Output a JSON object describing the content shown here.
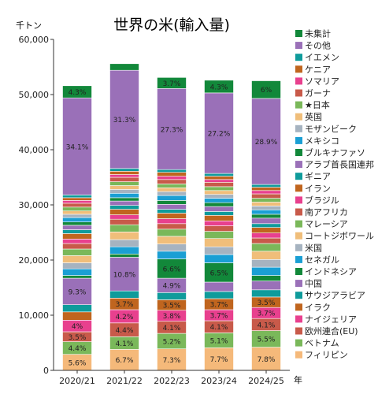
{
  "chart_data": {
    "type": "bar",
    "stacked": true,
    "title": "世界の米(輸入量)",
    "ylabel": "千トン",
    "xlabel": "年",
    "ylim": [
      0,
      60000
    ],
    "yticks": [
      0,
      10000,
      20000,
      30000,
      40000,
      50000,
      60000
    ],
    "ytick_labels": [
      "0",
      "10,000",
      "20,000",
      "30,000",
      "40,000",
      "50,000",
      "60,000"
    ],
    "categories": [
      "2020/21",
      "2021/22",
      "2022/23",
      "2023/24",
      "2024/25"
    ],
    "grid": false,
    "legend_position": "right",
    "series": [
      {
        "name": "フィリピン",
        "color": "#f5b97a",
        "values": [
          2900,
          3800,
          3900,
          4100,
          4200
        ],
        "labels": [
          "5.6%",
          "6.7%",
          "7.3%",
          "7.7%",
          "7.8%"
        ]
      },
      {
        "name": "ベトナム",
        "color": "#7ab85a",
        "values": [
          2300,
          2300,
          2800,
          2700,
          3000
        ],
        "labels": [
          "4.4%",
          "4.1%",
          "5.2%",
          "5.1%",
          "5.5%"
        ]
      },
      {
        "name": "欧州連合(EU)",
        "color": "#c85a4a",
        "values": [
          1800,
          2500,
          2200,
          2200,
          2200
        ],
        "labels": [
          "3.5%",
          "4.4%",
          "4.1%",
          "4.1%",
          "4.1%"
        ]
      },
      {
        "name": "ナイジェリア",
        "color": "#e8408e",
        "values": [
          2100,
          2400,
          2000,
          2000,
          2000
        ],
        "labels": [
          "4%",
          "4.2%",
          "3.8%",
          "3.7%",
          "3.7%"
        ]
      },
      {
        "name": "イラク",
        "color": "#c0651e",
        "values": [
          1500,
          2100,
          1900,
          2000,
          1900
        ],
        "labels": [
          "",
          "3.7%",
          "3.5%",
          "3.7%",
          "3.5%"
        ]
      },
      {
        "name": "サウジアラビア",
        "color": "#0f9b9b",
        "values": [
          1300,
          1300,
          1300,
          1300,
          1300
        ],
        "labels": [
          "",
          "",
          "",
          "",
          ""
        ]
      },
      {
        "name": "中国",
        "color": "#9a70b8",
        "values": [
          4800,
          6100,
          2600,
          1700,
          1600
        ],
        "labels": [
          "9.3%",
          "10.8%",
          "4.9%",
          "",
          ""
        ]
      },
      {
        "name": "インドネシア",
        "color": "#12883a",
        "values": [
          500,
          600,
          3500,
          3500,
          1000
        ],
        "labels": [
          "",
          "",
          "6.6%",
          "6.5%",
          ""
        ]
      },
      {
        "name": "セネガル",
        "color": "#1a9fd4",
        "values": [
          1200,
          1300,
          1400,
          1500,
          1500
        ],
        "labels": [
          "",
          "",
          "",
          "",
          ""
        ]
      },
      {
        "name": "米国",
        "color": "#a6b3c0",
        "values": [
          1100,
          1300,
          1300,
          1400,
          1400
        ],
        "labels": [
          "",
          "",
          "",
          "",
          ""
        ]
      },
      {
        "name": "コートジボワール",
        "color": "#f0be7a",
        "values": [
          1300,
          1400,
          1400,
          1500,
          1500
        ],
        "labels": [
          "",
          "",
          "",
          "",
          ""
        ]
      },
      {
        "name": "マレーシア",
        "color": "#7ab85a",
        "values": [
          1200,
          1300,
          1300,
          1300,
          1400
        ],
        "labels": [
          "",
          "",
          "",
          "",
          ""
        ]
      },
      {
        "name": "南アフリカ",
        "color": "#c85a4a",
        "values": [
          1000,
          1000,
          1000,
          1000,
          1000
        ],
        "labels": [
          "",
          "",
          "",
          "",
          ""
        ]
      },
      {
        "name": "ブラジル",
        "color": "#e8408e",
        "values": [
          800,
          800,
          900,
          900,
          900
        ],
        "labels": [
          "",
          "",
          "",
          "",
          ""
        ]
      },
      {
        "name": "イラン",
        "color": "#c0651e",
        "values": [
          1000,
          1000,
          1000,
          1000,
          1000
        ],
        "labels": [
          "",
          "",
          "",
          "",
          ""
        ]
      },
      {
        "name": "ギニア",
        "color": "#0f9b9b",
        "values": [
          700,
          700,
          700,
          700,
          700
        ],
        "labels": [
          "",
          "",
          "",
          "",
          ""
        ]
      },
      {
        "name": "アラブ首長国連邦",
        "color": "#9a70b8",
        "values": [
          800,
          800,
          900,
          900,
          1000
        ],
        "labels": [
          "",
          "",
          "",
          "",
          ""
        ]
      },
      {
        "name": "ブルキナファソ",
        "color": "#12883a",
        "values": [
          600,
          600,
          700,
          700,
          700
        ],
        "labels": [
          "",
          "",
          "",
          "",
          ""
        ]
      },
      {
        "name": "メキシコ",
        "color": "#1a9fd4",
        "values": [
          800,
          800,
          900,
          800,
          800
        ],
        "labels": [
          "",
          "",
          "",
          "",
          ""
        ]
      },
      {
        "name": "モザンビーク",
        "color": "#a6b3c0",
        "values": [
          600,
          700,
          700,
          700,
          700
        ],
        "labels": [
          "",
          "",
          "",
          "",
          ""
        ]
      },
      {
        "name": "英国",
        "color": "#f0be7a",
        "values": [
          600,
          700,
          700,
          700,
          700
        ],
        "labels": [
          "",
          "",
          "",
          "",
          ""
        ]
      },
      {
        "name": "★日本",
        "color": "#7ab85a",
        "values": [
          700,
          700,
          700,
          700,
          700
        ],
        "labels": [
          "",
          "",
          "",
          "",
          ""
        ]
      },
      {
        "name": "ガーナ",
        "color": "#c85a4a",
        "values": [
          700,
          800,
          800,
          800,
          800
        ],
        "labels": [
          "",
          "",
          "",
          "",
          ""
        ]
      },
      {
        "name": "ソマリア",
        "color": "#e8408e",
        "values": [
          500,
          500,
          600,
          500,
          600
        ],
        "labels": [
          "",
          "",
          "",
          "",
          ""
        ]
      },
      {
        "name": "ケニア",
        "color": "#c0651e",
        "values": [
          500,
          600,
          700,
          600,
          600
        ],
        "labels": [
          "",
          "",
          "",
          "",
          ""
        ]
      },
      {
        "name": "イエメン",
        "color": "#0f9b9b",
        "values": [
          500,
          500,
          500,
          500,
          500
        ],
        "labels": [
          "",
          "",
          "",
          "",
          ""
        ]
      },
      {
        "name": "その他",
        "color": "#9a70b8",
        "values": [
          17600,
          17800,
          14700,
          14600,
          15600
        ],
        "labels": [
          "34.1%",
          "31.3%",
          "27.3%",
          "27.2%",
          "28.9%"
        ]
      },
      {
        "name": "未集計",
        "color": "#12883a",
        "values": [
          2200,
          1200,
          2000,
          2300,
          3200
        ],
        "labels": [
          "4.3%",
          "",
          "3.7%",
          "4.3%",
          "6%"
        ]
      }
    ]
  }
}
